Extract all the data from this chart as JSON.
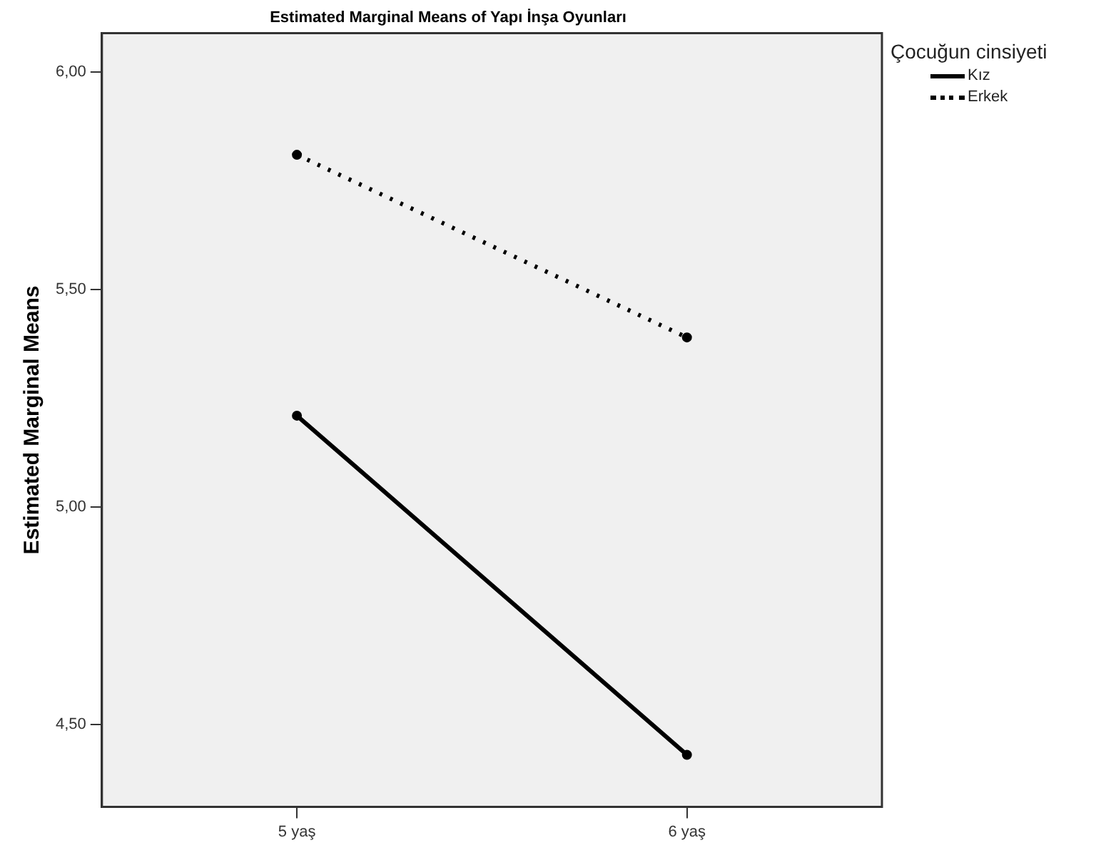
{
  "chart_data": {
    "type": "line",
    "title": "Estimated Marginal Means of Yapı İnşa Oyunları",
    "ylabel": "Estimated Marginal Means",
    "legend_title": "Çocuğun cinsiyeti",
    "legend": "top right",
    "grid": false,
    "marker": "circle",
    "categories": [
      "5 yaş",
      "6 yaş"
    ],
    "series": [
      {
        "name": "Kız",
        "color": "#000000",
        "line_style": "solid",
        "values": [
          5.21,
          4.43
        ]
      },
      {
        "name": "Erkek",
        "color": "#000000",
        "line_style": "dotted",
        "values": [
          5.81,
          5.39
        ]
      }
    ],
    "ylim": [
      4.31,
      6.09
    ],
    "yticks": [
      {
        "value": 4.5,
        "label": "4,50"
      },
      {
        "value": 5,
        "label": "5,00"
      },
      {
        "value": 5.5,
        "label": "5,50"
      },
      {
        "value": 6,
        "label": "6,00"
      }
    ]
  }
}
